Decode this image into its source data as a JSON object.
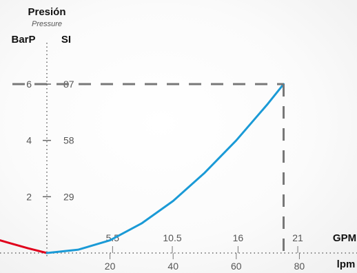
{
  "chart_data": {
    "type": "line",
    "title": "Presión",
    "subtitle": "Pressure",
    "left_axis_units": [
      "BarP",
      "SI"
    ],
    "y_bar_ticks": [
      2,
      4,
      6
    ],
    "y_psi_ticks": [
      29,
      58,
      87
    ],
    "x_gpm_unit": "GPM",
    "x_gpm_ticks": [
      "5.5",
      "10.5",
      "16",
      "21"
    ],
    "x_lpm_unit": "lpm",
    "x_lpm_ticks": [
      20,
      40,
      60,
      80
    ],
    "ylim_bar": [
      0,
      6.5
    ],
    "xlim_lpm": [
      -18,
      98
    ],
    "series": [
      {
        "color": "#e0001b",
        "x_lpm": [
          -18,
          -12,
          -6,
          0
        ],
        "y_bar": [
          0.55,
          0.36,
          0.17,
          0
        ]
      },
      {
        "color": "#1a9ad6",
        "x_lpm": [
          0,
          10,
          20,
          30,
          40,
          50,
          60,
          70,
          75
        ],
        "y_bar": [
          0,
          0.12,
          0.45,
          1.05,
          1.85,
          2.85,
          4.0,
          5.3,
          6.0
        ]
      }
    ],
    "reference_point": {
      "x_lpm": 75,
      "y_bar": 6
    },
    "grid": false,
    "legend": "none"
  }
}
